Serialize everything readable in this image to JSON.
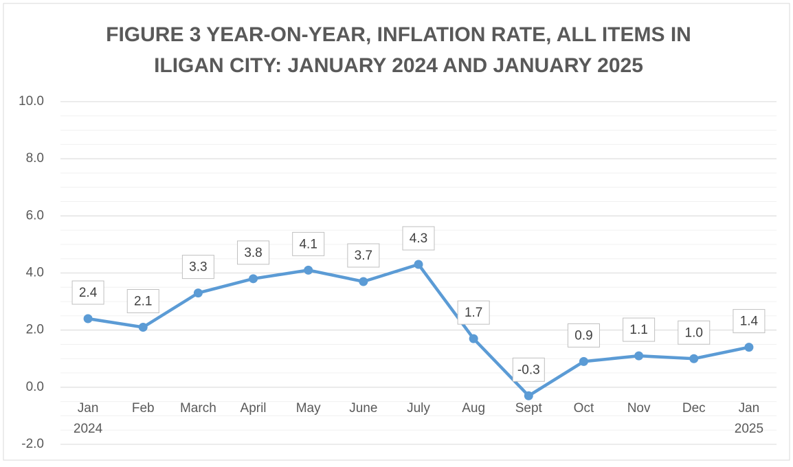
{
  "chart_data": {
    "type": "line",
    "title": [
      "FIGURE 3 YEAR-ON-YEAR, INFLATION RATE, ALL ITEMS IN",
      "ILIGAN CITY: JANUARY 2024 AND JANUARY 2025"
    ],
    "categories": [
      "Jan\n2024",
      "Feb",
      "March",
      "April",
      "May",
      "June",
      "July",
      "Aug",
      "Sept",
      "Oct",
      "Nov",
      "Dec",
      "Jan\n2025"
    ],
    "values": [
      2.4,
      2.1,
      3.3,
      3.8,
      4.1,
      3.7,
      4.3,
      1.7,
      -0.3,
      0.9,
      1.1,
      1.0,
      1.4
    ],
    "value_labels": [
      "2.4",
      "2.1",
      "3.3",
      "3.8",
      "4.1",
      "3.7",
      "4.3",
      "1.7",
      "-0.3",
      "0.9",
      "1.1",
      "1.0",
      "1.4"
    ],
    "color": "#5b9bd5",
    "ylim": [
      -2,
      10
    ],
    "yticks": [
      {
        "value": -2,
        "label": "-2.0"
      },
      {
        "value": 0,
        "label": "0.0"
      },
      {
        "value": 2,
        "label": "2.0"
      },
      {
        "value": 4,
        "label": "4.0"
      },
      {
        "value": 6,
        "label": "6.0"
      },
      {
        "value": 8,
        "label": "8.0"
      },
      {
        "value": 10,
        "label": "10.0"
      }
    ],
    "grid": true,
    "minor_grid": 0.5
  }
}
